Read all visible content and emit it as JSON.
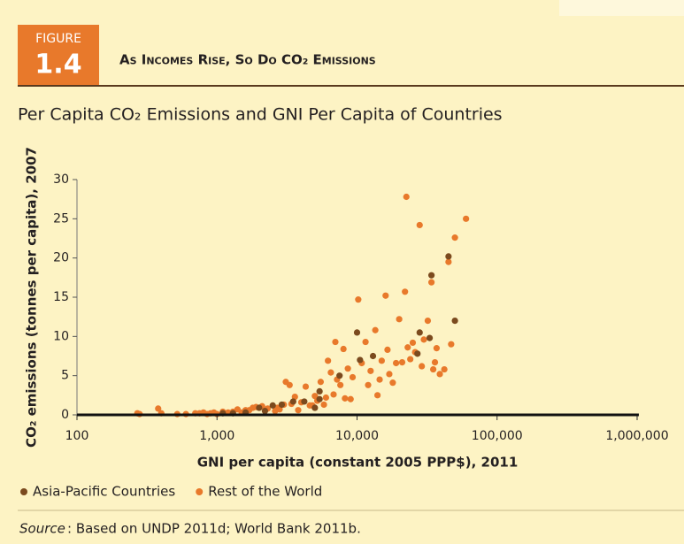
{
  "figure_label": "FIGURE",
  "figure_number": "1.4",
  "chart_data": {
    "type": "scatter",
    "title": "As Incomes Rise, So Do CO₂ Emissions",
    "subtitle": "Per Capita CO₂ Emissions and GNI Per Capita of Countries",
    "x_label": "GNI per capita (constant 2005 PPP$), 2011",
    "y_label": "CO₂ emissions (tonnes per capita), 2007",
    "xscale": "log",
    "xlim": [
      100,
      1000000
    ],
    "xticks": [
      100,
      {
        "value": 1000,
        "label": "1,000"
      },
      {
        "value": 10000,
        "label": "10,000"
      },
      {
        "value": 100000,
        "label": "100,000"
      },
      {
        "value": 1000000,
        "label": "1,000,000"
      }
    ],
    "ylim": [
      0,
      30
    ],
    "yticks": [
      0,
      5,
      10,
      15,
      20,
      25,
      30
    ],
    "grid": false,
    "series": [
      {
        "name": "Asia-Pacific Countries",
        "color": "#7b4a1e",
        "x": [
          1100,
          1300,
          1600,
          2000,
          2200,
          2500,
          2900,
          3500,
          4200,
          5000,
          5400,
          5400,
          7500,
          10000,
          10500,
          13000,
          27000,
          28000,
          33000,
          34000,
          45000,
          50000
        ],
        "values": [
          0.2,
          0.2,
          0.3,
          0.9,
          0.5,
          1.2,
          1.3,
          1.7,
          1.7,
          0.9,
          3.0,
          2.0,
          5.0,
          10.5,
          7.0,
          7.5,
          7.8,
          10.5,
          9.8,
          17.8,
          20.2,
          12.0
        ]
      },
      {
        "name": "Rest of the World",
        "color": "#e8792b",
        "x": [
          270,
          280,
          380,
          400,
          520,
          600,
          700,
          750,
          800,
          850,
          900,
          950,
          1000,
          1100,
          1200,
          1300,
          1400,
          1500,
          1600,
          1700,
          1800,
          1900,
          2100,
          2300,
          2600,
          2700,
          2800,
          3000,
          3100,
          3300,
          3400,
          3600,
          3800,
          4000,
          4300,
          4600,
          4800,
          5000,
          5200,
          5500,
          5800,
          6000,
          6200,
          6500,
          6800,
          7000,
          7200,
          7600,
          8000,
          8200,
          8600,
          9000,
          9300,
          10200,
          10800,
          11500,
          12000,
          12500,
          13500,
          14000,
          14500,
          15000,
          16000,
          16500,
          17000,
          18000,
          19000,
          20000,
          21000,
          22000,
          22500,
          23000,
          24000,
          25000,
          26000,
          28000,
          29000,
          30000,
          32000,
          34000,
          35000,
          36000,
          37000,
          39000,
          42000,
          45000,
          47000,
          50000,
          60000
        ],
        "values": [
          0.2,
          0.1,
          0.8,
          0.2,
          0.1,
          0.1,
          0.2,
          0.2,
          0.3,
          0.1,
          0.2,
          0.3,
          0.1,
          0.4,
          0.3,
          0.4,
          0.7,
          0.3,
          0.6,
          0.6,
          0.9,
          1.0,
          1.1,
          0.8,
          0.5,
          0.9,
          0.7,
          1.3,
          4.2,
          3.8,
          1.4,
          2.3,
          0.6,
          1.6,
          3.6,
          1.2,
          1.2,
          2.4,
          1.8,
          4.2,
          1.3,
          2.2,
          6.9,
          5.4,
          2.6,
          9.3,
          4.5,
          3.8,
          8.4,
          2.1,
          5.9,
          2.0,
          4.8,
          14.7,
          6.6,
          9.3,
          3.8,
          5.6,
          10.8,
          2.5,
          4.5,
          6.9,
          15.2,
          8.3,
          5.2,
          4.1,
          6.6,
          12.2,
          6.7,
          15.7,
          27.8,
          8.6,
          7.1,
          9.2,
          8.0,
          24.2,
          6.2,
          9.6,
          12.0,
          16.9,
          5.8,
          6.7,
          8.5,
          5.2,
          5.8,
          19.5,
          9.0,
          22.6,
          25.0
        ]
      }
    ]
  },
  "source_label": "Source",
  "source_text": ":  Based on UNDP 2011d; World Bank 2011b."
}
